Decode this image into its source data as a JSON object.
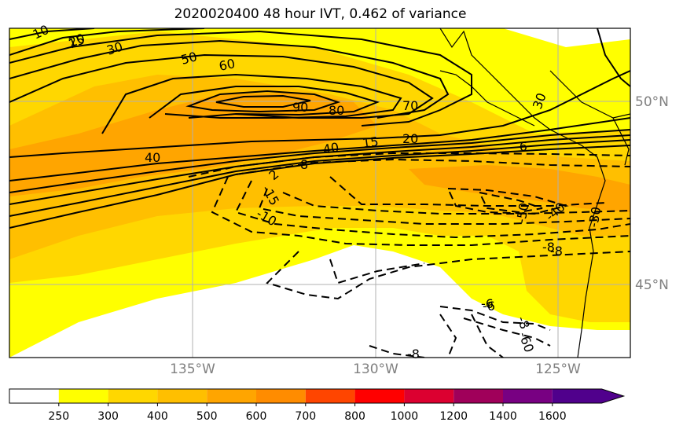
{
  "title": "2020020400 48 hour IVT, 0.462 of variance",
  "map": {
    "lon_labels": [
      "135°W",
      "130°W",
      "125°W"
    ],
    "lat_labels": [
      "50°N",
      "45°N"
    ],
    "contour_labels": [
      "10",
      "15",
      "20",
      "30",
      "50",
      "60",
      "90",
      "80",
      "70",
      "40",
      "40",
      "15",
      "20",
      "30",
      "2",
      "8",
      "-6",
      "-15",
      "-10",
      "-8",
      "-50",
      "-40",
      "-30",
      "-8",
      "-6",
      "-8",
      "-60",
      "-8",
      "-6"
    ],
    "shading_colors": [
      "#ffffff",
      "#ffff00",
      "#ffd700",
      "#ffbf00",
      "#ffa500"
    ]
  },
  "colorbar": {
    "ticks": [
      "250",
      "300",
      "400",
      "500",
      "600",
      "700",
      "800",
      "1000",
      "1200",
      "1400",
      "1600"
    ],
    "colors": [
      "#ffffff",
      "#ffff00",
      "#ffd700",
      "#ffbf00",
      "#ffa500",
      "#ff8c00",
      "#ff4500",
      "#ff0000",
      "#dc0030",
      "#a0005a",
      "#780082",
      "#50008c"
    ]
  }
}
